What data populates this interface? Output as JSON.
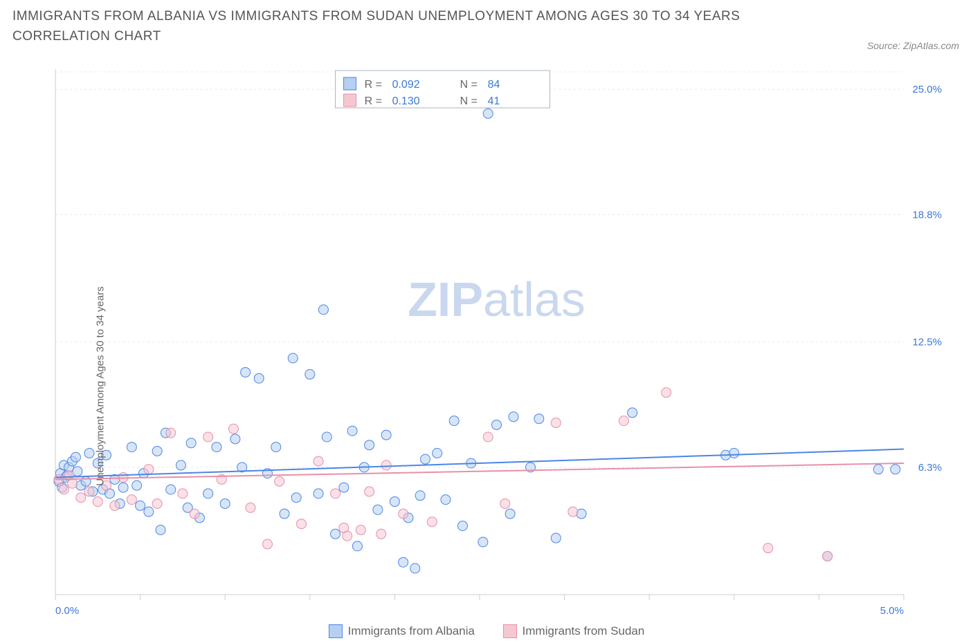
{
  "title": "IMMIGRANTS FROM ALBANIA VS IMMIGRANTS FROM SUDAN UNEMPLOYMENT AMONG AGES 30 TO 34 YEARS CORRELATION CHART",
  "source_label": "Source: ZipAtlas.com",
  "watermark_zip": "ZIP",
  "watermark_atlas": "atlas",
  "watermark_color": "#c9d8ee",
  "y_axis_label": "Unemployment Among Ages 30 to 34 years",
  "chart": {
    "type": "scatter",
    "background_color": "#ffffff",
    "grid_color": "#e8e8e8",
    "axis_color": "#cccccc",
    "tick_label_color": "#3b78d8",
    "tick_label_fontsize": 15,
    "xlim": [
      0.0,
      5.0
    ],
    "ylim": [
      0.0,
      26.0
    ],
    "x_ticks": [
      {
        "v": 0.0,
        "label": "0.0%"
      },
      {
        "v": 0.5,
        "label": ""
      },
      {
        "v": 1.0,
        "label": ""
      },
      {
        "v": 1.5,
        "label": ""
      },
      {
        "v": 2.0,
        "label": ""
      },
      {
        "v": 2.5,
        "label": ""
      },
      {
        "v": 3.0,
        "label": ""
      },
      {
        "v": 3.5,
        "label": ""
      },
      {
        "v": 4.0,
        "label": ""
      },
      {
        "v": 4.5,
        "label": ""
      },
      {
        "v": 5.0,
        "label": "5.0%"
      }
    ],
    "y_ticks": [
      {
        "v": 6.3,
        "label": "6.3%"
      },
      {
        "v": 12.5,
        "label": "12.5%"
      },
      {
        "v": 18.8,
        "label": "18.8%"
      },
      {
        "v": 25.0,
        "label": "25.0%"
      }
    ],
    "marker_radius": 7,
    "marker_opacity": 0.55,
    "line_width": 2
  },
  "series": [
    {
      "id": "albania",
      "label": "Immigrants from Albania",
      "stroke": "#4a86e8",
      "fill": "#b7cff0",
      "r_value": "0.092",
      "n_value": "84",
      "trend": {
        "x1": 0.0,
        "y1": 5.8,
        "x2": 5.0,
        "y2": 7.2
      },
      "points": [
        [
          0.02,
          5.6
        ],
        [
          0.03,
          6.0
        ],
        [
          0.04,
          5.3
        ],
        [
          0.05,
          6.4
        ],
        [
          0.06,
          5.8
        ],
        [
          0.07,
          5.9
        ],
        [
          0.08,
          6.3
        ],
        [
          0.1,
          6.6
        ],
        [
          0.12,
          6.8
        ],
        [
          0.13,
          6.1
        ],
        [
          0.15,
          5.4
        ],
        [
          0.18,
          5.6
        ],
        [
          0.2,
          7.0
        ],
        [
          0.22,
          5.1
        ],
        [
          0.25,
          6.5
        ],
        [
          0.28,
          5.2
        ],
        [
          0.3,
          6.9
        ],
        [
          0.32,
          5.0
        ],
        [
          0.35,
          5.7
        ],
        [
          0.38,
          4.5
        ],
        [
          0.4,
          5.3
        ],
        [
          0.45,
          7.3
        ],
        [
          0.48,
          5.4
        ],
        [
          0.5,
          4.4
        ],
        [
          0.52,
          6.0
        ],
        [
          0.55,
          4.1
        ],
        [
          0.6,
          7.1
        ],
        [
          0.62,
          3.2
        ],
        [
          0.65,
          8.0
        ],
        [
          0.68,
          5.2
        ],
        [
          0.74,
          6.4
        ],
        [
          0.78,
          4.3
        ],
        [
          0.8,
          7.5
        ],
        [
          0.85,
          3.8
        ],
        [
          0.9,
          5.0
        ],
        [
          0.95,
          7.3
        ],
        [
          1.0,
          4.5
        ],
        [
          1.06,
          7.7
        ],
        [
          1.1,
          6.3
        ],
        [
          1.12,
          11.0
        ],
        [
          1.2,
          10.7
        ],
        [
          1.25,
          6.0
        ],
        [
          1.3,
          7.3
        ],
        [
          1.35,
          4.0
        ],
        [
          1.4,
          11.7
        ],
        [
          1.42,
          4.8
        ],
        [
          1.5,
          10.9
        ],
        [
          1.55,
          5.0
        ],
        [
          1.58,
          14.1
        ],
        [
          1.6,
          7.8
        ],
        [
          1.65,
          3.0
        ],
        [
          1.7,
          5.3
        ],
        [
          1.75,
          8.1
        ],
        [
          1.78,
          2.4
        ],
        [
          1.82,
          6.3
        ],
        [
          1.85,
          7.4
        ],
        [
          1.9,
          4.2
        ],
        [
          1.95,
          7.9
        ],
        [
          2.0,
          4.6
        ],
        [
          2.05,
          1.6
        ],
        [
          2.08,
          3.8
        ],
        [
          2.12,
          1.3
        ],
        [
          2.15,
          4.9
        ],
        [
          2.18,
          6.7
        ],
        [
          2.25,
          7.0
        ],
        [
          2.3,
          4.7
        ],
        [
          2.35,
          8.6
        ],
        [
          2.4,
          3.4
        ],
        [
          2.45,
          6.5
        ],
        [
          2.52,
          2.6
        ],
        [
          2.55,
          23.8
        ],
        [
          2.6,
          8.4
        ],
        [
          2.68,
          4.0
        ],
        [
          2.7,
          8.8
        ],
        [
          2.8,
          6.3
        ],
        [
          2.85,
          8.7
        ],
        [
          2.95,
          2.8
        ],
        [
          3.1,
          4.0
        ],
        [
          3.4,
          9.0
        ],
        [
          3.95,
          6.9
        ],
        [
          4.0,
          7.0
        ],
        [
          4.55,
          1.9
        ],
        [
          4.85,
          6.2
        ],
        [
          4.95,
          6.2
        ]
      ]
    },
    {
      "id": "sudan",
      "label": "Immigrants from Sudan",
      "stroke": "#e98fa6",
      "fill": "#f5c7d3",
      "r_value": "0.130",
      "n_value": "41",
      "trend": {
        "x1": 0.0,
        "y1": 5.7,
        "x2": 5.0,
        "y2": 6.5
      },
      "points": [
        [
          0.02,
          5.7
        ],
        [
          0.05,
          5.2
        ],
        [
          0.08,
          5.9
        ],
        [
          0.1,
          5.5
        ],
        [
          0.15,
          4.8
        ],
        [
          0.2,
          5.1
        ],
        [
          0.25,
          4.6
        ],
        [
          0.3,
          5.4
        ],
        [
          0.35,
          4.4
        ],
        [
          0.4,
          5.8
        ],
        [
          0.45,
          4.7
        ],
        [
          0.55,
          6.2
        ],
        [
          0.6,
          4.5
        ],
        [
          0.68,
          8.0
        ],
        [
          0.75,
          5.0
        ],
        [
          0.82,
          4.0
        ],
        [
          0.9,
          7.8
        ],
        [
          0.98,
          5.7
        ],
        [
          1.05,
          8.2
        ],
        [
          1.15,
          4.3
        ],
        [
          1.25,
          2.5
        ],
        [
          1.32,
          5.6
        ],
        [
          1.45,
          3.5
        ],
        [
          1.55,
          6.6
        ],
        [
          1.65,
          5.0
        ],
        [
          1.7,
          3.3
        ],
        [
          1.72,
          2.9
        ],
        [
          1.8,
          3.2
        ],
        [
          1.85,
          5.1
        ],
        [
          1.92,
          3.0
        ],
        [
          1.95,
          6.4
        ],
        [
          2.05,
          4.0
        ],
        [
          2.22,
          3.6
        ],
        [
          2.55,
          7.8
        ],
        [
          2.65,
          4.5
        ],
        [
          2.95,
          8.5
        ],
        [
          3.05,
          4.1
        ],
        [
          3.35,
          8.6
        ],
        [
          3.6,
          10.0
        ],
        [
          4.2,
          2.3
        ],
        [
          4.55,
          1.9
        ]
      ]
    }
  ],
  "legend_box": {
    "r_label": "R =",
    "n_label": "N =",
    "border_color": "#a8b4c0",
    "value_color": "#3b78d8",
    "label_color": "#666666",
    "fontsize": 16
  },
  "bottom_legend": {
    "fontsize": 17,
    "text_color": "#666666"
  },
  "y_label_color": "#666666",
  "y_label_fontsize": 15
}
